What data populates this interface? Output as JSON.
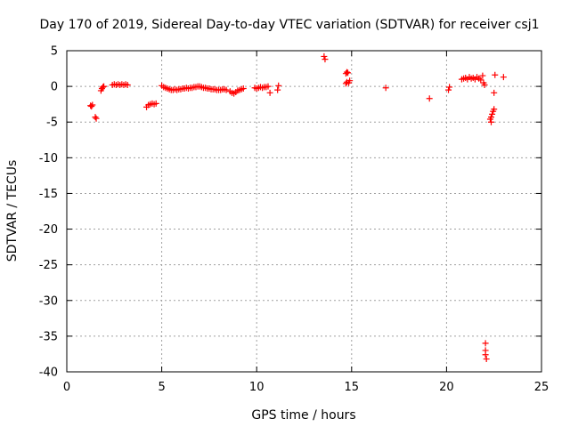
{
  "chart_data": {
    "type": "scatter",
    "title": "Day 170 of 2019, Sidereal Day-to-day VTEC variation (SDTVAR) for receiver csj1",
    "xlabel": "GPS time / hours",
    "ylabel": "SDTVAR / TECUs",
    "xlim": [
      0,
      25
    ],
    "ylim": [
      -40,
      5
    ],
    "x_ticks": [
      0,
      5,
      10,
      15,
      20,
      25
    ],
    "y_ticks": [
      5,
      0,
      -5,
      -10,
      -15,
      -20,
      -25,
      -30,
      -35,
      -40
    ],
    "grid": true,
    "marker": "plus",
    "series": [
      {
        "name": "SDTVAR",
        "color": "#ff0000",
        "points": [
          [
            1.25,
            -2.7
          ],
          [
            1.3,
            -2.8
          ],
          [
            1.35,
            -2.6
          ],
          [
            1.5,
            -4.3
          ],
          [
            1.55,
            -4.5
          ],
          [
            1.8,
            -0.6
          ],
          [
            1.85,
            -0.3
          ],
          [
            1.9,
            -0.1
          ],
          [
            1.95,
            0.0
          ],
          [
            2.4,
            0.2
          ],
          [
            2.5,
            0.3
          ],
          [
            2.6,
            0.2
          ],
          [
            2.7,
            0.3
          ],
          [
            2.8,
            0.2
          ],
          [
            2.9,
            0.3
          ],
          [
            3.0,
            0.2
          ],
          [
            3.1,
            0.3
          ],
          [
            3.2,
            0.2
          ],
          [
            4.2,
            -2.9
          ],
          [
            4.3,
            -2.6
          ],
          [
            4.4,
            -2.5
          ],
          [
            4.5,
            -2.4
          ],
          [
            4.6,
            -2.5
          ],
          [
            4.7,
            -2.4
          ],
          [
            5.0,
            0.1
          ],
          [
            5.1,
            -0.1
          ],
          [
            5.2,
            -0.2
          ],
          [
            5.3,
            -0.3
          ],
          [
            5.4,
            -0.4
          ],
          [
            5.5,
            -0.5
          ],
          [
            5.6,
            -0.5
          ],
          [
            5.7,
            -0.4
          ],
          [
            5.8,
            -0.5
          ],
          [
            5.9,
            -0.4
          ],
          [
            6.0,
            -0.4
          ],
          [
            6.1,
            -0.3
          ],
          [
            6.2,
            -0.3
          ],
          [
            6.3,
            -0.2
          ],
          [
            6.4,
            -0.3
          ],
          [
            6.5,
            -0.2
          ],
          [
            6.6,
            -0.2
          ],
          [
            6.7,
            -0.1
          ],
          [
            6.8,
            -0.1
          ],
          [
            6.9,
            0.0
          ],
          [
            7.0,
            0.0
          ],
          [
            7.1,
            -0.1
          ],
          [
            7.2,
            -0.2
          ],
          [
            7.3,
            -0.2
          ],
          [
            7.4,
            -0.3
          ],
          [
            7.5,
            -0.3
          ],
          [
            7.6,
            -0.4
          ],
          [
            7.7,
            -0.4
          ],
          [
            7.8,
            -0.4
          ],
          [
            7.9,
            -0.5
          ],
          [
            8.0,
            -0.5
          ],
          [
            8.1,
            -0.5
          ],
          [
            8.2,
            -0.4
          ],
          [
            8.3,
            -0.4
          ],
          [
            8.4,
            -0.5
          ],
          [
            8.6,
            -0.7
          ],
          [
            8.7,
            -0.9
          ],
          [
            8.8,
            -1.0
          ],
          [
            8.9,
            -0.8
          ],
          [
            9.0,
            -0.6
          ],
          [
            9.1,
            -0.5
          ],
          [
            9.2,
            -0.4
          ],
          [
            9.3,
            -0.3
          ],
          [
            9.9,
            -0.2
          ],
          [
            10.0,
            -0.3
          ],
          [
            10.1,
            -0.2
          ],
          [
            10.2,
            -0.1
          ],
          [
            10.3,
            -0.2
          ],
          [
            10.4,
            -0.1
          ],
          [
            10.5,
            -0.1
          ],
          [
            10.6,
            0.0
          ],
          [
            10.7,
            -0.9
          ],
          [
            11.1,
            -0.5
          ],
          [
            11.15,
            0.1
          ],
          [
            13.55,
            4.2
          ],
          [
            13.6,
            3.8
          ],
          [
            14.7,
            1.8
          ],
          [
            14.75,
            2.0
          ],
          [
            14.8,
            1.9
          ],
          [
            14.85,
            0.5
          ],
          [
            14.9,
            0.8
          ],
          [
            14.7,
            0.4
          ],
          [
            14.75,
            0.6
          ],
          [
            16.8,
            -0.2
          ],
          [
            19.1,
            -1.7
          ],
          [
            20.1,
            -0.5
          ],
          [
            20.15,
            -0.1
          ],
          [
            20.8,
            1.0
          ],
          [
            20.9,
            1.1
          ],
          [
            21.0,
            1.2
          ],
          [
            21.1,
            1.0
          ],
          [
            21.2,
            1.3
          ],
          [
            21.3,
            1.1
          ],
          [
            21.4,
            1.2
          ],
          [
            21.5,
            1.0
          ],
          [
            21.6,
            1.3
          ],
          [
            21.7,
            1.1
          ],
          [
            21.8,
            0.9
          ],
          [
            21.9,
            1.5
          ],
          [
            21.95,
            0.5
          ],
          [
            22.0,
            0.2
          ],
          [
            22.05,
            -36.0
          ],
          [
            22.05,
            -37.0
          ],
          [
            22.05,
            -37.6
          ],
          [
            22.1,
            -38.2
          ],
          [
            22.3,
            -4.6
          ],
          [
            22.35,
            -4.3
          ],
          [
            22.4,
            -3.9
          ],
          [
            22.45,
            -3.5
          ],
          [
            22.5,
            -3.2
          ],
          [
            22.35,
            -5.0
          ],
          [
            22.5,
            -0.9
          ],
          [
            22.55,
            1.6
          ],
          [
            23.0,
            1.3
          ]
        ]
      }
    ]
  }
}
